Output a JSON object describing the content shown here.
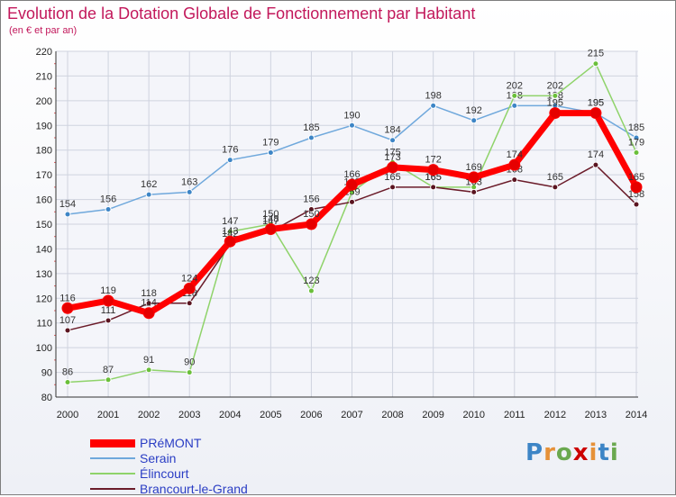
{
  "chart_data": {
    "type": "line",
    "title": "Evolution de la Dotation Globale de Fonctionnement par Habitant",
    "subtitle": "(en € et par an)",
    "xlabel": "",
    "ylabel": "",
    "ylim": [
      80,
      220
    ],
    "yticks": [
      80,
      90,
      100,
      110,
      120,
      130,
      140,
      150,
      160,
      170,
      180,
      190,
      200,
      210,
      220
    ],
    "x": [
      "2000",
      "2001",
      "2002",
      "2003",
      "2004",
      "2005",
      "2006",
      "2007",
      "2008",
      "2009",
      "2010",
      "2011",
      "2012",
      "2013",
      "2014"
    ],
    "grid": true,
    "legend_position": "bottom-left",
    "series": [
      {
        "name": "Serain",
        "color": "#6fa8dc",
        "marker": "#3d85c6",
        "values": [
          154,
          156,
          162,
          163,
          176,
          179,
          185,
          190,
          184,
          198,
          192,
          198,
          198,
          195,
          185
        ]
      },
      {
        "name": "Élincourt",
        "color": "#8fd36a",
        "marker": "#6abf3a",
        "values": [
          86,
          87,
          91,
          90,
          147,
          150,
          123,
          163,
          175,
          165,
          165,
          202,
          202,
          215,
          179
        ]
      },
      {
        "name": "Brancourt-le-Grand",
        "color": "#6b1c2a",
        "marker": "#5a1420",
        "values": [
          107,
          111,
          118,
          118,
          142,
          147,
          156,
          159,
          165,
          165,
          163,
          168,
          165,
          174,
          158
        ]
      },
      {
        "name": "PRéMONT",
        "color": "#ff0000",
        "marker": "#e60000",
        "values": [
          116,
          119,
          114,
          124,
          143,
          148,
          150,
          166,
          173,
          172,
          169,
          174,
          195,
          195,
          165
        ]
      }
    ],
    "legend_order": [
      "PRéMONT",
      "Serain",
      "Élincourt",
      "Brancourt-le-Grand"
    ]
  },
  "logo": {
    "text": "Proxiti"
  }
}
